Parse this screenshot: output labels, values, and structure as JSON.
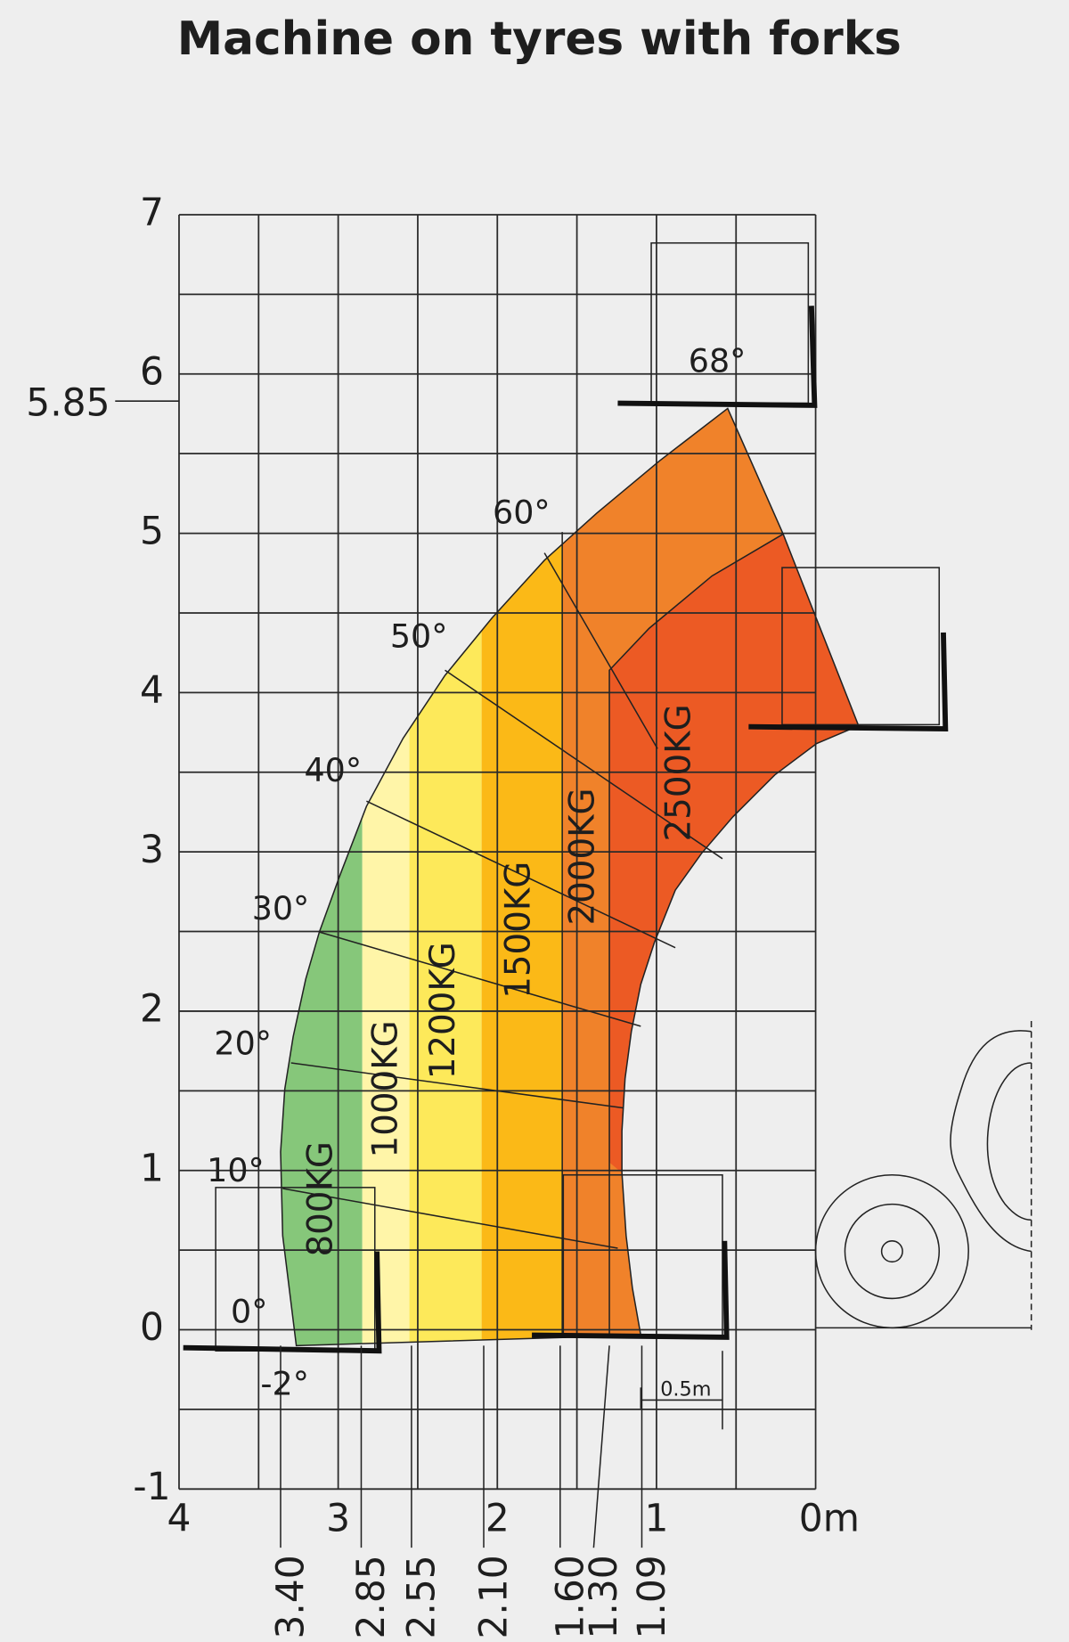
{
  "title": "Machine on tyres with forks",
  "y_axis": {
    "labels": [
      "7",
      "6",
      "5",
      "4",
      "3",
      "2",
      "1",
      "0",
      "-1"
    ]
  },
  "height_mark": "5.85",
  "x_axis": {
    "labels": [
      "4",
      "3",
      "2",
      "1",
      "0m"
    ]
  },
  "reach_marks": [
    "3.40",
    "2.85",
    "2.55",
    "2.10",
    "1.60",
    "1.30",
    "1.09"
  ],
  "angles": [
    "68°",
    "60°",
    "50°",
    "40°",
    "30°",
    "20°",
    "10°",
    "0°",
    "-2°"
  ],
  "loads": [
    "800KG",
    "1000KG",
    "1200KG",
    "1500KG",
    "2000KG",
    "2500KG"
  ],
  "scale_bar": "0.5m"
}
